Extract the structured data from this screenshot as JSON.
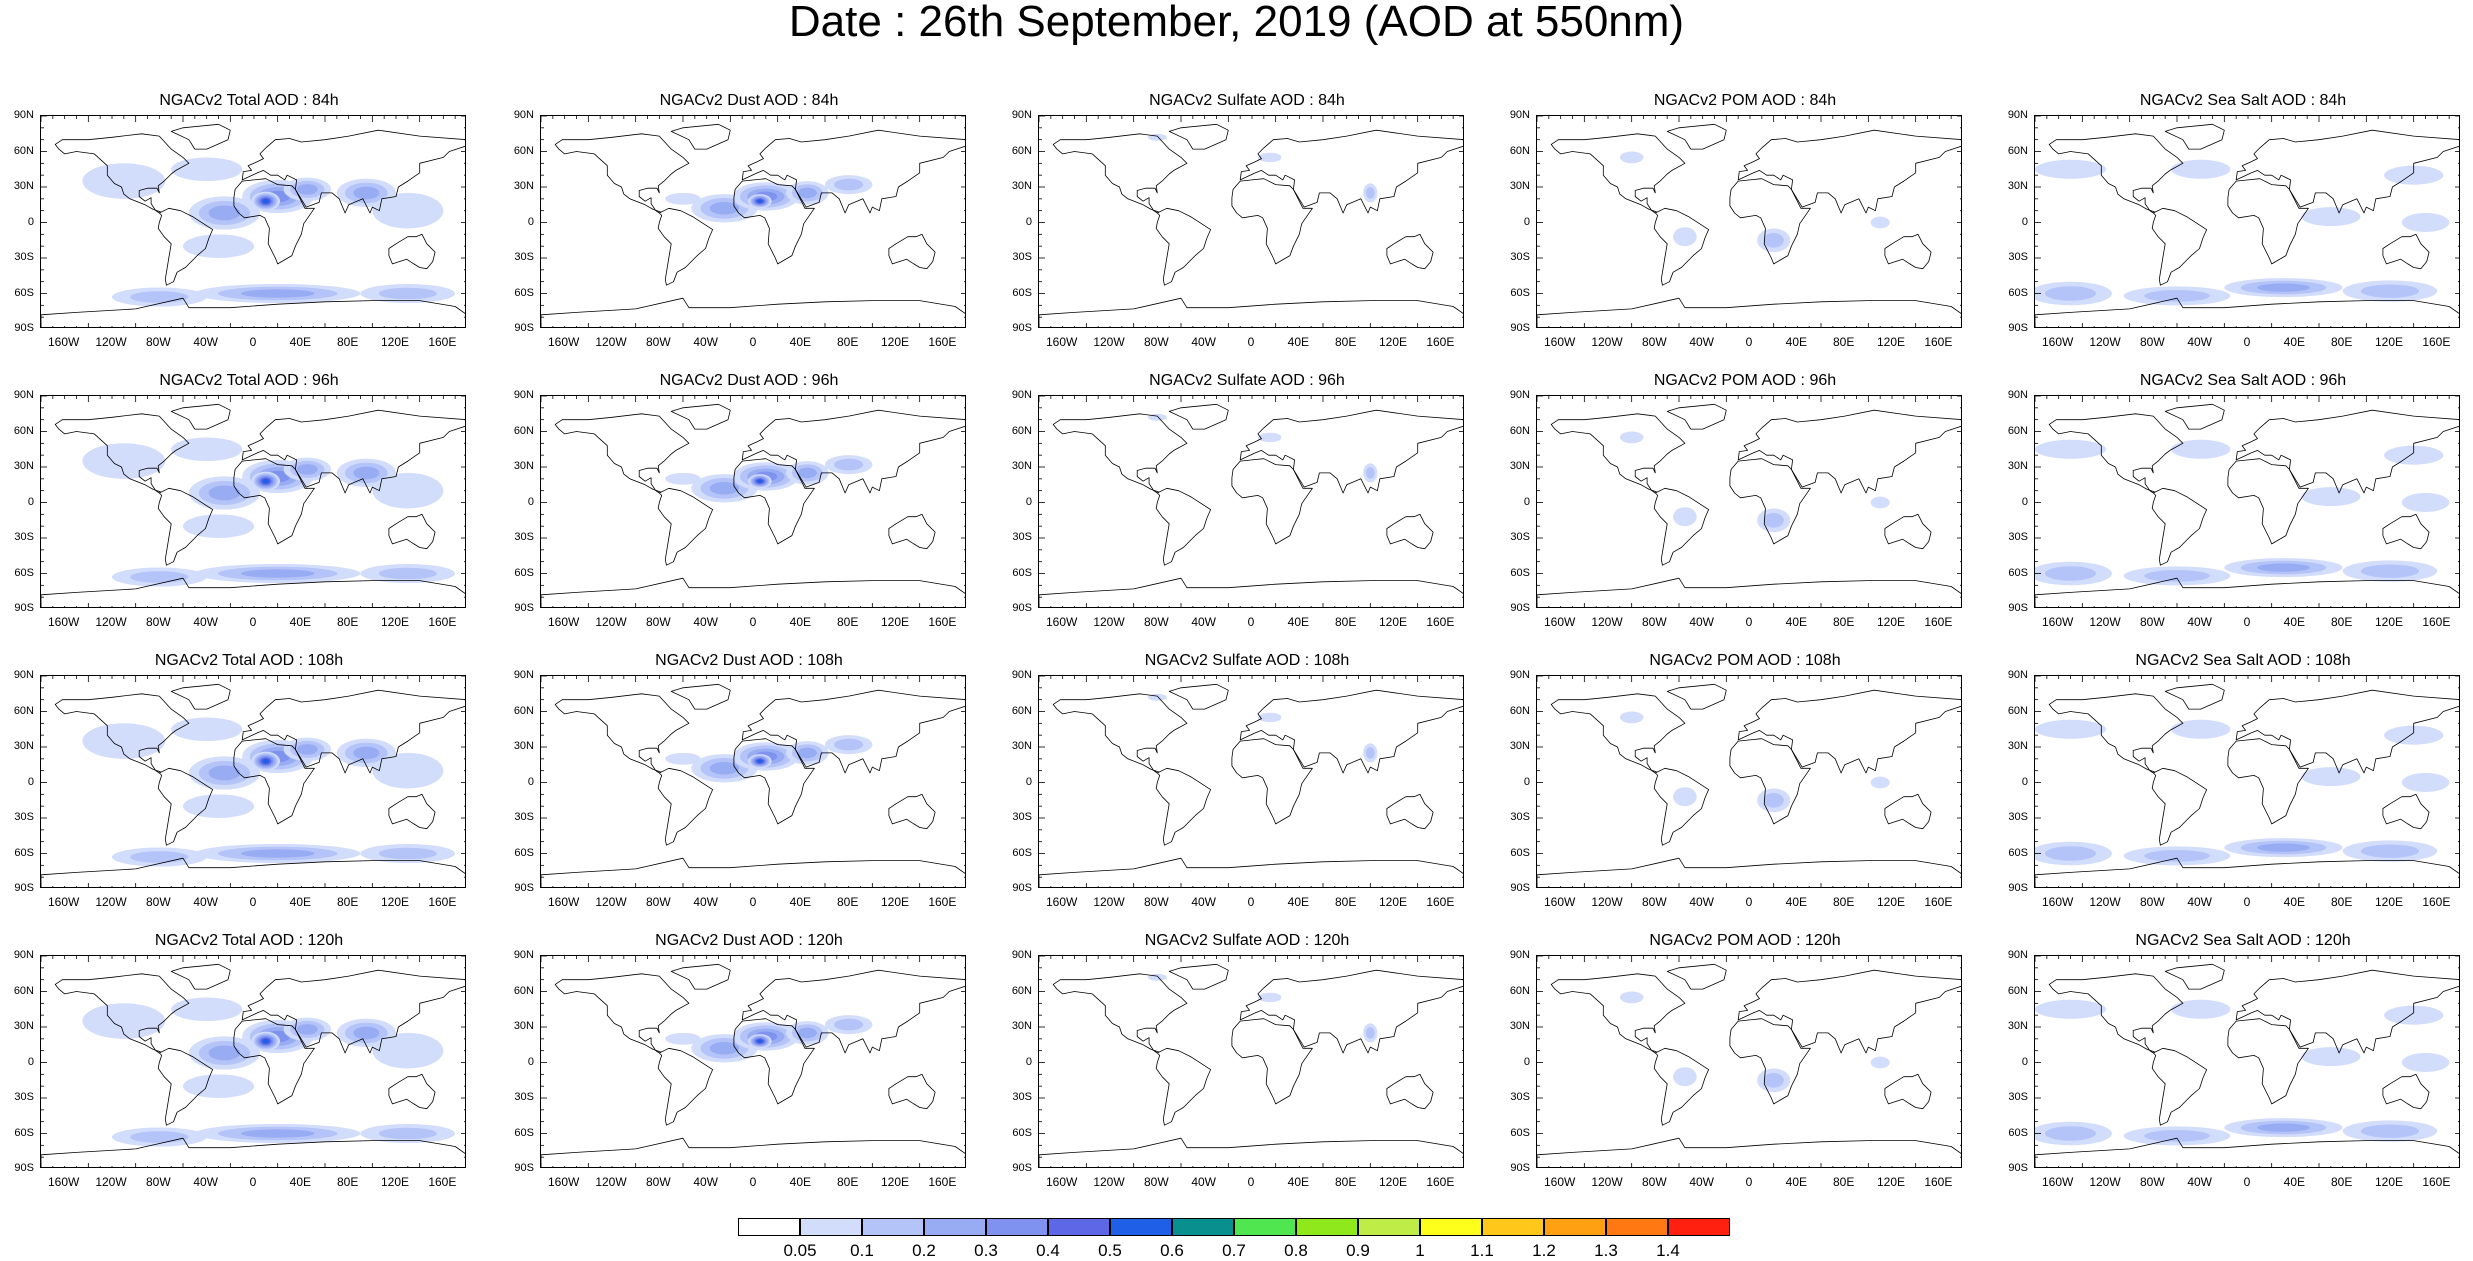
{
  "title": "Date : 26th September, 2019 (AOD at 550nm)",
  "lat_labels": [
    "90N",
    "60N",
    "30N",
    "0",
    "30S",
    "60S",
    "90S"
  ],
  "lon_labels": [
    "160W",
    "120W",
    "80W",
    "40W",
    "0",
    "40E",
    "80E",
    "120E",
    "160E"
  ],
  "rows": [
    [
      "NGACv2 Total AOD : 84h",
      "NGACv2 Dust AOD : 84h",
      "NGACv2 Sulfate AOD : 84h",
      "NGACv2 POM AOD : 84h",
      "NGACv2 Sea Salt AOD : 84h"
    ],
    [
      "NGACv2 Total AOD : 96h",
      "NGACv2 Dust AOD : 96h",
      "NGACv2 Sulfate AOD : 96h",
      "NGACv2 POM AOD : 96h",
      "NGACv2 Sea Salt AOD : 96h"
    ],
    [
      "NGACv2 Total AOD : 108h",
      "NGACv2 Dust AOD : 108h",
      "NGACv2 Sulfate AOD : 108h",
      "NGACv2 POM AOD : 108h",
      "NGACv2 Sea Salt AOD : 108h"
    ],
    [
      "NGACv2 Total AOD : 120h",
      "NGACv2 Dust AOD : 120h",
      "NGACv2 Sulfate AOD : 120h",
      "NGACv2 POM AOD : 120h",
      "NGACv2 Sea Salt  AOD : 120h"
    ]
  ],
  "colorbar": {
    "colors": [
      "#ffffff",
      "#d2dcfb",
      "#b4c4f8",
      "#98acf4",
      "#7f92ef",
      "#5e67e6",
      "#1f5fe8",
      "#0a8f8f",
      "#4fe64f",
      "#8ee81c",
      "#c0ec48",
      "#ffff1c",
      "#ffc71a",
      "#ffa012",
      "#ff7811",
      "#ff2010"
    ],
    "ticks": [
      "0.05",
      "0.1",
      "0.2",
      "0.3",
      "0.4",
      "0.5",
      "0.6",
      "0.7",
      "0.8",
      "0.9",
      "1",
      "1.1",
      "1.2",
      "1.3",
      "1.4"
    ]
  }
}
